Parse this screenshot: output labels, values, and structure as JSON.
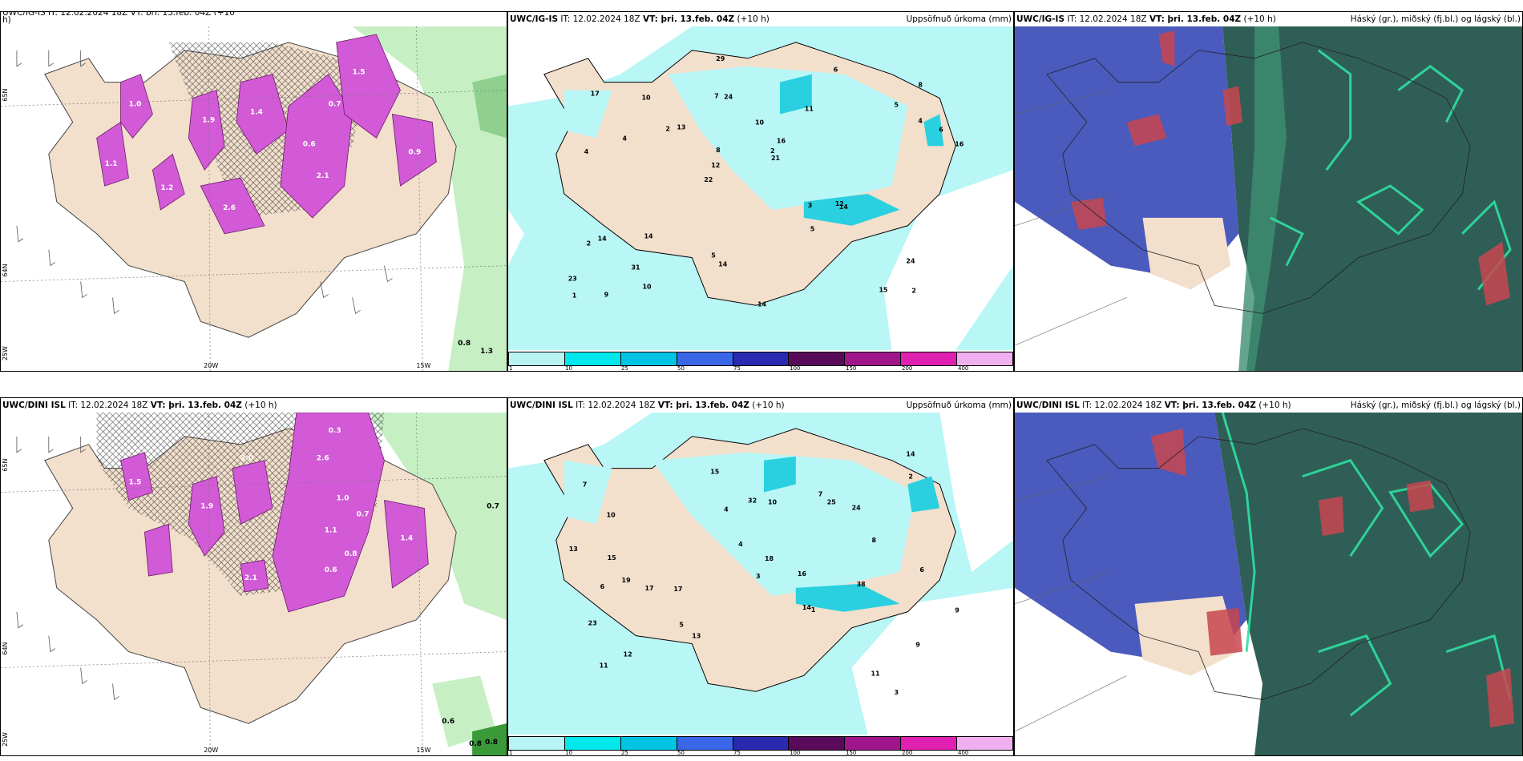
{
  "panels": {
    "top_left": {
      "header": "UWC/IG-IS IT: 12.02.2024 18Z VT: þri. 13.feb. 04Z (+10",
      "header2": "h)",
      "lat_labels": [
        "65N",
        "64N"
      ],
      "lon_labels": [
        "20W",
        "15W",
        "25W"
      ],
      "values": [
        "1.0",
        "1.9",
        "1.4",
        "0.6",
        "2.1",
        "1.5",
        "0.9",
        "1.2",
        "0.7",
        "2.6",
        "1.1",
        "0.8",
        "1.3"
      ]
    },
    "top_mid": {
      "header_bold": "UWC/IG-IS",
      "header_rest": "IT: 12.02.2024 18Z",
      "vt_bold": "VT: þri. 13.feb. 04Z",
      "vt_rest": "(+10 h)",
      "right": "Uppsöfnuð úrkoma (mm)",
      "values": [
        "2",
        "4",
        "8",
        "22",
        "11",
        "9",
        "7",
        "10",
        "14",
        "13",
        "23",
        "31",
        "24",
        "16",
        "14",
        "17",
        "29",
        "16",
        "3",
        "4",
        "12",
        "5",
        "8",
        "10",
        "6",
        "14",
        "15",
        "24",
        "12",
        "14",
        "2",
        "4",
        "5",
        "10",
        "6",
        "2",
        "1",
        "14",
        "21",
        "2",
        "5"
      ]
    },
    "top_right": {
      "header_bold": "UWC/IG-IS",
      "header_rest": "IT: 12.02.2024 18Z",
      "vt_bold": "VT: þri. 13.feb. 04Z",
      "vt_rest": "(+10 h)",
      "right": "Háský (gr.), miðský (fj.bl.) og lágský (bl.)"
    },
    "bot_left": {
      "header_bold": "UWC/DINI ISL",
      "header_rest": "IT: 12.02.2024 18Z",
      "vt_bold": "VT: þri. 13.feb. 04Z",
      "vt_rest": "(+10 h)",
      "lat_labels": [
        "65N",
        "64N"
      ],
      "lon_labels": [
        "20W",
        "15W",
        "25W"
      ],
      "values": [
        "2.0",
        "1.5",
        "1.9",
        "2.6",
        "0.3",
        "1.1",
        "0.7",
        "1.0",
        "0.8",
        "0.6",
        "2.1",
        "1.4",
        "0.7",
        "0.6",
        "0.8",
        "0.8"
      ]
    },
    "bot_mid": {
      "header_bold": "UWC/DINI ISL",
      "header_rest": "IT: 12.02.2024 18Z",
      "vt_bold": "VT: þri. 13.feb. 04Z",
      "vt_rest": "(+10 h)",
      "right": "Uppsöfnuð úrkoma (mm)",
      "values": [
        "3",
        "19",
        "14",
        "7",
        "9",
        "10",
        "12",
        "17",
        "24",
        "32",
        "25",
        "11",
        "13",
        "15",
        "16",
        "23",
        "38",
        "18",
        "13",
        "11",
        "14",
        "10",
        "8",
        "9",
        "6",
        "15",
        "17",
        "3",
        "4",
        "2",
        "1",
        "6",
        "5",
        "7",
        "4"
      ]
    },
    "bot_right": {
      "header_bold": "UWC/DINI ISL",
      "header_rest": "IT: 12.02.2024 18Z",
      "vt_bold": "VT: þri. 13.feb. 04Z",
      "vt_rest": "(+10 h)",
      "right": "Háský (gr.), miðský (fj.bl.) og lágský (bl.)"
    }
  },
  "colorbar": {
    "labels": [
      "1",
      "10",
      "25",
      "50",
      "75",
      "100",
      "150",
      "200",
      "400"
    ],
    "colors": [
      "#b8f4f4",
      "#00e8ec",
      "#00c4e4",
      "#3a66e8",
      "#2a2ab0",
      "#5a0a5a",
      "#a0148c",
      "#e020b0",
      "#f0b0f0"
    ]
  },
  "colors": {
    "land": "#f2dfcc",
    "sea": "#ffffff",
    "precip_sea": "#b9f6f6",
    "magenta": "#d25ad6",
    "green": "#9fe3a0",
    "cloud_high": "#2f5e56",
    "cloud_mid": "#4a5abd",
    "cloud_low": "#1fc98f"
  }
}
